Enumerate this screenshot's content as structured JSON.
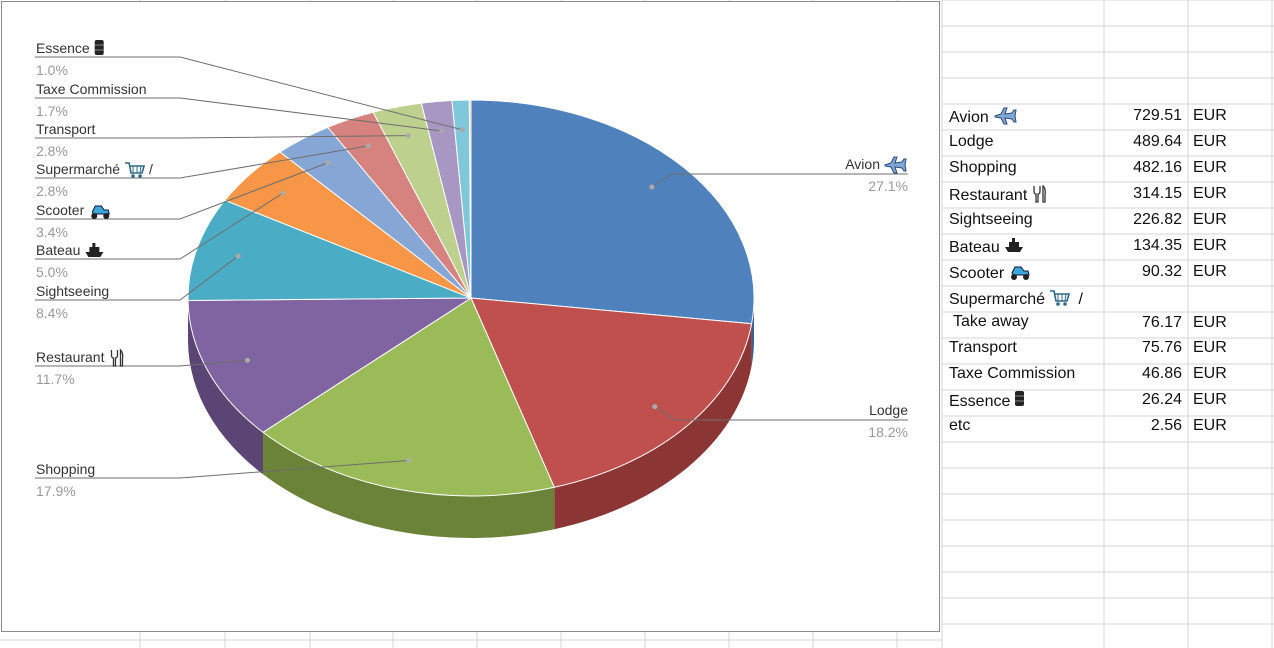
{
  "chart_data": {
    "type": "pie",
    "slices": [
      {
        "label": "Avion",
        "icon": "airplane-icon",
        "percent": "27.1%",
        "value": 729.51,
        "color": "#4F81BD",
        "side_color": "#3A6090"
      },
      {
        "label": "Lodge",
        "icon": "",
        "percent": "18.2%",
        "value": 489.64,
        "color": "#C0504D",
        "side_color": "#8B3634"
      },
      {
        "label": "Shopping",
        "icon": "",
        "percent": "17.9%",
        "value": 482.16,
        "color": "#9BBB59",
        "side_color": "#6B8338"
      },
      {
        "label": "Restaurant",
        "icon": "fork-knife-icon",
        "percent": "11.7%",
        "value": 314.15,
        "color": "#8064A2",
        "side_color": "#5A4574"
      },
      {
        "label": "Sightseeing",
        "icon": "",
        "percent": "8.4%",
        "value": 226.82,
        "color": "#4BACC6",
        "side_color": "#317B8F"
      },
      {
        "label": "Bateau",
        "icon": "ship-icon",
        "percent": "5.0%",
        "value": 134.35,
        "color": "#F79646",
        "side_color": "#B56A2C"
      },
      {
        "label": "Scooter",
        "icon": "scooter-icon",
        "percent": "3.4%",
        "value": 90.32,
        "color": "#86A7D5",
        "side_color": "#6080B0"
      },
      {
        "label": "Supermarché",
        "icon": "shopping-cart-icon",
        "label_suffix": "/",
        "percent": "2.8%",
        "value": 76.17,
        "color": "#D6827E",
        "side_color": "#A05E5B"
      },
      {
        "label": "Transport",
        "icon": "",
        "percent": "2.8%",
        "value": 75.76,
        "color": "#BDD08E",
        "side_color": "#8EA066"
      },
      {
        "label": "Taxe Commission",
        "icon": "",
        "percent": "1.7%",
        "value": 46.86,
        "color": "#A897C2",
        "side_color": "#7D6E96"
      },
      {
        "label": "Essence",
        "icon": "oil-barrel-icon",
        "percent": "1.0%",
        "value": 26.24,
        "color": "#7FC7DA",
        "side_color": "#5A9FB0"
      },
      {
        "label": "",
        "icon": "",
        "percent": "",
        "value": 2.56,
        "color": "#F5B888",
        "side_color": "#C08A60"
      }
    ],
    "legend": "none"
  },
  "table": {
    "currency": "EUR",
    "rows": [
      {
        "name": "Avion",
        "icon": "airplane-icon",
        "value": "729.51"
      },
      {
        "name": "Lodge",
        "icon": "",
        "value": "489.64"
      },
      {
        "name": "Shopping",
        "icon": "",
        "value": "482.16"
      },
      {
        "name": "Restaurant",
        "icon": "fork-knife-icon",
        "value": "314.15"
      },
      {
        "name": "Sightseeing",
        "icon": "",
        "value": "226.82"
      },
      {
        "name": "Bateau",
        "icon": "ship-icon",
        "value": "134.35"
      },
      {
        "name": "Scooter",
        "icon": "scooter-icon",
        "value": "90.32"
      },
      {
        "name": "Supermarché",
        "icon": "shopping-cart-icon",
        "suffix": "/",
        "line2": "Take away",
        "value": "76.17"
      },
      {
        "name": "Transport",
        "icon": "",
        "value": "75.76"
      },
      {
        "name": "Taxe Commission",
        "icon": "",
        "value": "46.86"
      },
      {
        "name": "Essence",
        "icon": "oil-barrel-icon",
        "value": "26.24"
      },
      {
        "name": "etc",
        "icon": "",
        "value": "2.56"
      }
    ]
  }
}
